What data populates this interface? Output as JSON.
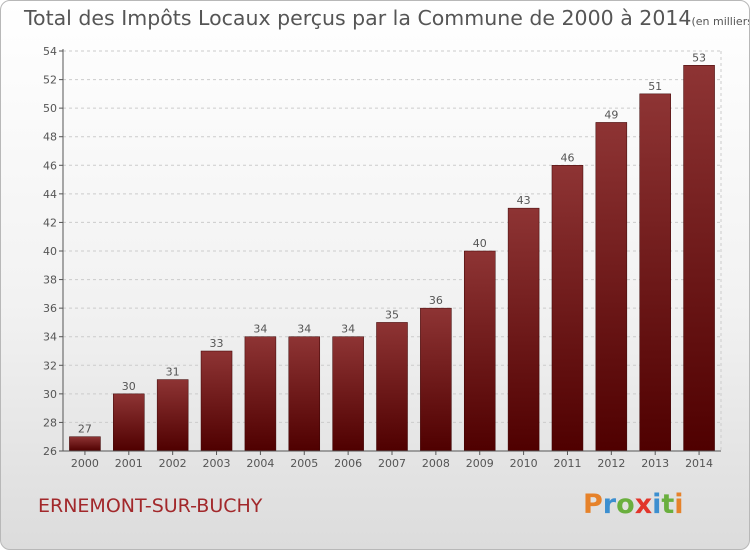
{
  "title": "Total des Impôts Locaux perçus par la Commune de 2000 à 2014",
  "title_unit": "(en milliers d'€)",
  "commune": "ERNEMONT-SUR-BUCHY",
  "logo": {
    "text": "Proxiti",
    "letters": [
      "P",
      "r",
      "o",
      "x",
      "i",
      "t",
      "i"
    ],
    "colors": [
      "#e6822a",
      "#3c8fd0",
      "#6aaf3e",
      "#e2352b",
      "#3c8fd0",
      "#6aaf3e",
      "#e6822a"
    ]
  },
  "colors": {
    "bar_top": "#8e3434",
    "bar_bottom": "#4f0000",
    "grid": "#cccccc",
    "axis": "#555555",
    "text": "#555555",
    "accent": "#a2282b"
  },
  "chart_data": {
    "type": "bar",
    "title": "Total des Impôts Locaux perçus par la Commune de 2000 à 2014",
    "unit": "(en milliers d'€)",
    "xlabel": "",
    "ylabel": "",
    "categories": [
      "2000",
      "2001",
      "2002",
      "2003",
      "2004",
      "2005",
      "2006",
      "2007",
      "2008",
      "2009",
      "2010",
      "2011",
      "2012",
      "2013",
      "2014"
    ],
    "values": [
      27,
      30,
      31,
      33,
      34,
      34,
      34,
      35,
      36,
      40,
      43,
      46,
      49,
      51,
      53
    ],
    "ylim": [
      26,
      54
    ],
    "yticks": [
      26,
      28,
      30,
      32,
      34,
      36,
      38,
      40,
      42,
      44,
      46,
      48,
      50,
      52,
      54
    ],
    "grid": true,
    "legend": "none"
  }
}
